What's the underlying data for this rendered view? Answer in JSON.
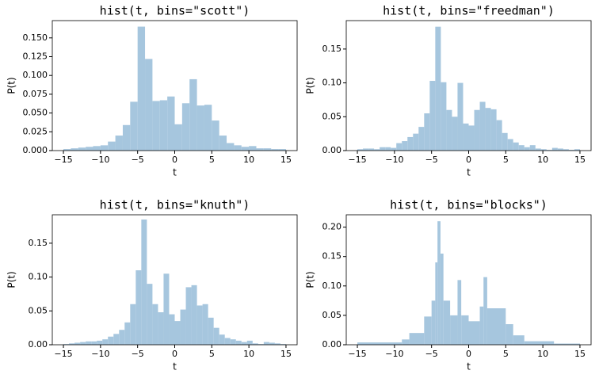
{
  "chart_data": [
    {
      "type": "histogram",
      "title": "hist(t, bins=\"scott\")",
      "xlabel": "t",
      "ylabel": "P(t)",
      "color": "#a6c6de",
      "bins": [
        -15,
        -14,
        -13,
        -12,
        -11,
        -10,
        -9,
        -8,
        -7,
        -6,
        -5,
        -4,
        -3,
        -2,
        -1,
        0,
        1,
        2,
        3,
        4,
        5,
        6,
        7,
        8,
        9,
        10,
        11,
        12,
        13,
        14,
        15
      ],
      "values": [
        0.002,
        0.003,
        0.004,
        0.005,
        0.006,
        0.007,
        0.012,
        0.02,
        0.034,
        0.065,
        0.165,
        0.122,
        0.066,
        0.067,
        0.072,
        0.035,
        0.063,
        0.095,
        0.06,
        0.061,
        0.04,
        0.02,
        0.01,
        0.007,
        0.005,
        0.006,
        0.003,
        0.003,
        0.002,
        0.002
      ],
      "xlim": [
        -16.5,
        16.5
      ],
      "ylim": [
        0,
        0.173
      ],
      "xticks": [
        {
          "value": -15,
          "label": "−15"
        },
        {
          "value": -10,
          "label": "−10"
        },
        {
          "value": -5,
          "label": "−5"
        },
        0,
        5,
        10,
        15
      ],
      "yticks": [
        {
          "value": 0,
          "label": "0.000"
        },
        0.025,
        {
          "value": 0.05,
          "label": "0.050"
        },
        0.075,
        {
          "value": 0.1,
          "label": "0.100"
        },
        0.125,
        {
          "value": 0.15,
          "label": "0.150"
        }
      ]
    },
    {
      "type": "histogram",
      "title": "hist(t, bins=\"freedman\")",
      "xlabel": "t",
      "ylabel": "P(t)",
      "color": "#a6c6de",
      "bins": [
        -15,
        -14.25,
        -13.5,
        -12.75,
        -12,
        -11.25,
        -10.5,
        -9.75,
        -9,
        -8.25,
        -7.5,
        -6.75,
        -6,
        -5.25,
        -4.5,
        -3.75,
        -3,
        -2.25,
        -1.5,
        -0.75,
        0,
        0.75,
        1.5,
        2.25,
        3,
        3.75,
        4.5,
        5.25,
        6,
        6.75,
        7.5,
        8.25,
        9,
        9.75,
        10.5,
        11.25,
        12,
        12.75,
        13.5,
        14.25,
        15
      ],
      "values": [
        0.002,
        0.003,
        0.003,
        0.002,
        0.005,
        0.005,
        0.004,
        0.011,
        0.014,
        0.02,
        0.025,
        0.035,
        0.055,
        0.103,
        0.183,
        0.101,
        0.06,
        0.05,
        0.1,
        0.04,
        0.037,
        0.06,
        0.072,
        0.063,
        0.061,
        0.045,
        0.026,
        0.017,
        0.012,
        0.008,
        0.005,
        0.008,
        0.003,
        0.002,
        0.001,
        0.004,
        0.003,
        0.002,
        0.001,
        0.002
      ],
      "xlim": [
        -16.5,
        16.5
      ],
      "ylim": [
        0,
        0.192
      ],
      "xticks": [
        {
          "value": -15,
          "label": "−15"
        },
        {
          "value": -10,
          "label": "−10"
        },
        {
          "value": -5,
          "label": "−5"
        },
        0,
        5,
        10,
        15
      ],
      "yticks": [
        {
          "value": 0,
          "label": "0.00"
        },
        0.05,
        {
          "value": 0.1,
          "label": "0.10"
        },
        0.15
      ]
    },
    {
      "type": "histogram",
      "title": "hist(t, bins=\"knuth\")",
      "xlabel": "t",
      "ylabel": "P(t)",
      "color": "#a6c6de",
      "bins": [
        -15,
        -14.25,
        -13.5,
        -12.75,
        -12,
        -11.25,
        -10.5,
        -9.75,
        -9,
        -8.25,
        -7.5,
        -6.75,
        -6,
        -5.25,
        -4.5,
        -3.75,
        -3,
        -2.25,
        -1.5,
        -0.75,
        0,
        0.75,
        1.5,
        2.25,
        3,
        3.75,
        4.5,
        5.25,
        6,
        6.75,
        7.5,
        8.25,
        9,
        9.75,
        10.5,
        11.25,
        12,
        12.75,
        13.5,
        14.25,
        15
      ],
      "values": [
        0.001,
        0.002,
        0.003,
        0.004,
        0.005,
        0.005,
        0.006,
        0.008,
        0.012,
        0.016,
        0.022,
        0.033,
        0.06,
        0.11,
        0.185,
        0.09,
        0.06,
        0.048,
        0.105,
        0.045,
        0.035,
        0.052,
        0.085,
        0.088,
        0.058,
        0.06,
        0.04,
        0.025,
        0.015,
        0.01,
        0.008,
        0.006,
        0.004,
        0.006,
        0.002,
        0.001,
        0.004,
        0.003,
        0.002,
        0.001
      ],
      "xlim": [
        -16.5,
        16.5
      ],
      "ylim": [
        0,
        0.192
      ],
      "xticks": [
        {
          "value": -15,
          "label": "−15"
        },
        {
          "value": -10,
          "label": "−10"
        },
        {
          "value": -5,
          "label": "−5"
        },
        0,
        5,
        10,
        15
      ],
      "yticks": [
        {
          "value": 0,
          "label": "0.00"
        },
        0.05,
        {
          "value": 0.1,
          "label": "0.10"
        },
        0.15
      ]
    },
    {
      "type": "histogram",
      "title": "hist(t, bins=\"blocks\")",
      "xlabel": "t",
      "ylabel": "P(t)",
      "color": "#a6c6de",
      "bins": [
        -15,
        -9,
        -8,
        -6,
        -5,
        -4.5,
        -4.2,
        -3.8,
        -3.4,
        -2.5,
        -1.5,
        -1,
        0,
        1.5,
        2,
        2.5,
        5,
        6,
        7.5,
        11.5,
        15
      ],
      "values": [
        0.004,
        0.009,
        0.02,
        0.048,
        0.075,
        0.14,
        0.21,
        0.155,
        0.075,
        0.05,
        0.11,
        0.05,
        0.04,
        0.065,
        0.115,
        0.062,
        0.035,
        0.016,
        0.006,
        0.002
      ],
      "xlim": [
        -16.5,
        16.5
      ],
      "ylim": [
        0,
        0.221
      ],
      "xticks": [
        {
          "value": -15,
          "label": "−15"
        },
        {
          "value": -10,
          "label": "−10"
        },
        {
          "value": -5,
          "label": "−5"
        },
        0,
        5,
        10,
        15
      ],
      "yticks": [
        {
          "value": 0,
          "label": "0.00"
        },
        0.05,
        {
          "value": 0.1,
          "label": "0.10"
        },
        0.15,
        {
          "value": 0.2,
          "label": "0.20"
        }
      ]
    }
  ]
}
